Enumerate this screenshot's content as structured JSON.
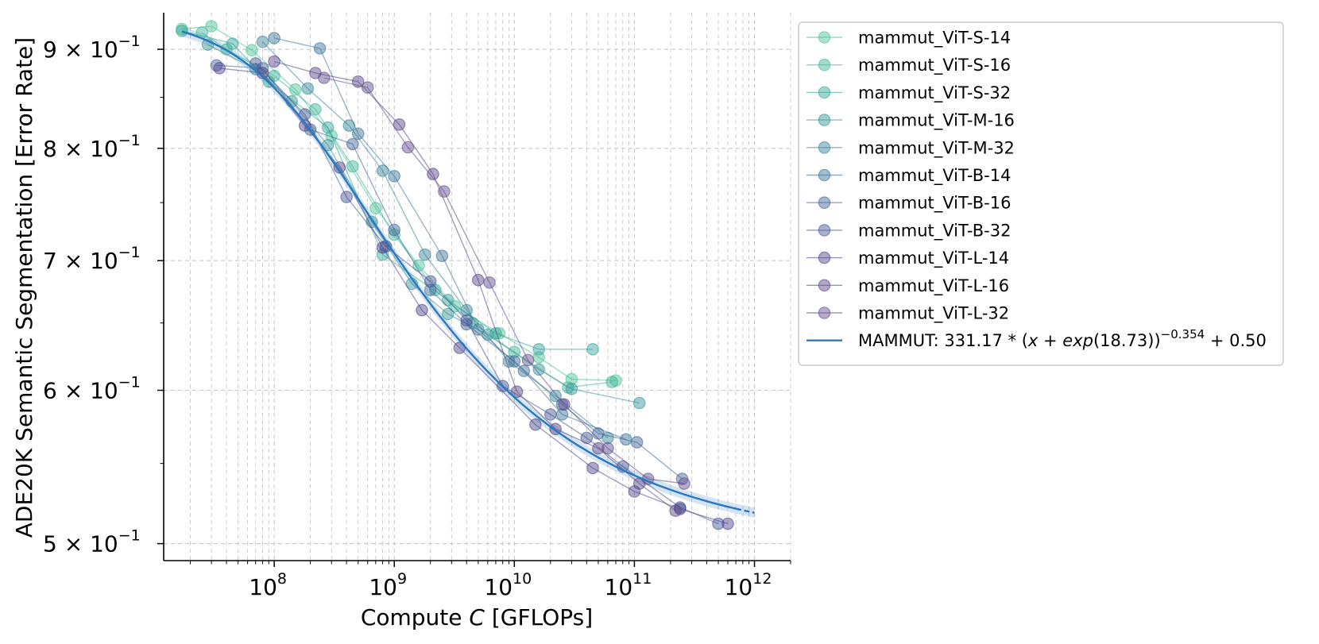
{
  "chart_data": {
    "type": "line",
    "title": "",
    "xlabel_parts": [
      "Compute ",
      "C",
      " [GFLOPs]"
    ],
    "ylabel": "ADE20K Semantic Segmentation [Error Rate]",
    "x_scale": "log",
    "y_scale": "log",
    "xlim": [
      12000000,
      2000000000000
    ],
    "ylim": [
      0.49,
      0.94
    ],
    "grid": true,
    "legend_position": "outside-right",
    "x_ticks": [
      {
        "value": 100000000,
        "base": "10",
        "exp": "8"
      },
      {
        "value": 1000000000,
        "base": "10",
        "exp": "9"
      },
      {
        "value": 10000000000,
        "base": "10",
        "exp": "10"
      },
      {
        "value": 100000000000,
        "base": "10",
        "exp": "11"
      },
      {
        "value": 1000000000000,
        "base": "10",
        "exp": "12"
      }
    ],
    "y_ticks": [
      {
        "value": 0.5,
        "mant": "5 × 10",
        "exp": "−1"
      },
      {
        "value": 0.6,
        "mant": "6 × 10",
        "exp": "−1"
      },
      {
        "value": 0.7,
        "mant": "7 × 10",
        "exp": "−1"
      },
      {
        "value": 0.8,
        "mant": "8 × 10",
        "exp": "−1"
      },
      {
        "value": 0.9,
        "mant": "9 × 10",
        "exp": "−1"
      }
    ],
    "series": [
      {
        "name": "mammut_ViT-S-14",
        "color": "#4fc49a",
        "points": [
          [
            17000000.0,
            0.922
          ],
          [
            30000000.0,
            0.925
          ],
          [
            65000000.0,
            0.899
          ],
          [
            150000000.0,
            0.858
          ],
          [
            300000000.0,
            0.812
          ],
          [
            700000000.0,
            0.745
          ],
          [
            1600000000.0,
            0.696
          ],
          [
            3200000000.0,
            0.663
          ],
          [
            7500000000.0,
            0.642
          ],
          [
            16000000000.0,
            0.624
          ],
          [
            30000000000.0,
            0.608
          ],
          [
            70000000000.0,
            0.607
          ]
        ]
      },
      {
        "name": "mammut_ViT-S-16",
        "color": "#45b59b",
        "points": [
          [
            25000000.0,
            0.918
          ],
          [
            40000000.0,
            0.9
          ],
          [
            100000000.0,
            0.872
          ],
          [
            220000000.0,
            0.838
          ],
          [
            450000000.0,
            0.783
          ],
          [
            1000000000.0,
            0.722
          ],
          [
            2200000000.0,
            0.676
          ],
          [
            4500000000.0,
            0.65
          ],
          [
            10000000000.0,
            0.628
          ],
          [
            28000000000.0,
            0.602
          ],
          [
            65000000000.0,
            0.606
          ]
        ]
      },
      {
        "name": "mammut_ViT-S-32",
        "color": "#3aa79a",
        "points": [
          [
            17000000.0,
            0.92
          ],
          [
            45000000.0,
            0.906
          ],
          [
            90000000.0,
            0.866
          ],
          [
            280000000.0,
            0.82
          ],
          [
            800000000.0,
            0.705
          ],
          [
            2800000000.0,
            0.668
          ],
          [
            7000000000.0,
            0.642
          ],
          [
            16000000000.0,
            0.63
          ],
          [
            45000000000.0,
            0.63
          ]
        ]
      },
      {
        "name": "mammut_ViT-M-16",
        "color": "#3d979a",
        "points": [
          [
            28000000.0,
            0.905
          ],
          [
            70000000.0,
            0.879
          ],
          [
            140000000.0,
            0.846
          ],
          [
            280000000.0,
            0.803
          ],
          [
            650000000.0,
            0.733
          ],
          [
            1400000000.0,
            0.681
          ],
          [
            2800000000.0,
            0.657
          ],
          [
            6000000000.0,
            0.641
          ],
          [
            16000000000.0,
            0.615
          ],
          [
            30000000000.0,
            0.601
          ],
          [
            110000000000.0,
            0.591
          ]
        ]
      },
      {
        "name": "mammut_ViT-M-32",
        "color": "#3d879a",
        "points": [
          [
            80000000.0,
            0.908
          ],
          [
            190000000.0,
            0.859
          ],
          [
            420000000.0,
            0.822
          ],
          [
            800000000.0,
            0.779
          ],
          [
            1800000000.0,
            0.705
          ],
          [
            4000000000.0,
            0.66
          ],
          [
            9000000000.0,
            0.621
          ],
          [
            22000000000.0,
            0.596
          ],
          [
            60000000000.0,
            0.567
          ]
        ]
      },
      {
        "name": "mammut_ViT-B-14",
        "color": "#3f789a",
        "points": [
          [
            100000000.0,
            0.912
          ],
          [
            240000000.0,
            0.901
          ],
          [
            500000000.0,
            0.814
          ],
          [
            1000000000.0,
            0.774
          ],
          [
            2500000000.0,
            0.704
          ],
          [
            5000000000.0,
            0.645
          ],
          [
            12000000000.0,
            0.614
          ],
          [
            25000000000.0,
            0.583
          ],
          [
            85000000000.0,
            0.566
          ]
        ]
      },
      {
        "name": "mammut_ViT-B-16",
        "color": "#44699a",
        "points": [
          [
            33000000.0,
            0.883
          ],
          [
            80000000.0,
            0.88
          ],
          [
            200000000.0,
            0.818
          ],
          [
            450000000.0,
            0.804
          ],
          [
            1000000000.0,
            0.726
          ],
          [
            2000000000.0,
            0.676
          ],
          [
            4000000000.0,
            0.649
          ],
          [
            10000000000.0,
            0.621
          ],
          [
            25000000000.0,
            0.59
          ],
          [
            50000000000.0,
            0.57
          ],
          [
            105000000000.0,
            0.564
          ],
          [
            250000000000.0,
            0.54
          ]
        ]
      },
      {
        "name": "mammut_ViT-B-32",
        "color": "#4a5a96",
        "points": [
          [
            70000000.0,
            0.885
          ],
          [
            180000000.0,
            0.833
          ],
          [
            400000000.0,
            0.755
          ],
          [
            850000000.0,
            0.712
          ],
          [
            2000000000.0,
            0.683
          ],
          [
            4000000000.0,
            0.652
          ],
          [
            8000000000.0,
            0.603
          ],
          [
            20000000000.0,
            0.583
          ],
          [
            40000000000.0,
            0.567
          ],
          [
            80000000000.0,
            0.548
          ],
          [
            240000000000.0,
            0.522
          ],
          [
            500000000000.0,
            0.512
          ]
        ]
      },
      {
        "name": "mammut_ViT-L-14",
        "color": "#4f4a8f",
        "points": [
          [
            35000000.0,
            0.88
          ],
          [
            80000000.0,
            0.875
          ],
          [
            180000000.0,
            0.822
          ],
          [
            350000000.0,
            0.782
          ],
          [
            800000000.0,
            0.711
          ],
          [
            1700000000.0,
            0.66
          ],
          [
            3500000000.0,
            0.631
          ],
          [
            15000000000.0,
            0.576
          ],
          [
            45000000000.0,
            0.547
          ],
          [
            100000000000.0,
            0.532
          ],
          [
            240000000000.0,
            0.521
          ],
          [
            600000000000.0,
            0.512
          ]
        ]
      },
      {
        "name": "mammut_ViT-L-16",
        "color": "#5b4a8c",
        "points": [
          [
            100000000.0,
            0.887
          ],
          [
            220000000.0,
            0.875
          ],
          [
            500000000.0,
            0.866
          ],
          [
            1100000000.0,
            0.823
          ],
          [
            2100000000.0,
            0.776
          ],
          [
            5000000000.0,
            0.684
          ],
          [
            10500000000.0,
            0.599
          ],
          [
            22000000000.0,
            0.573
          ],
          [
            50000000000.0,
            0.56
          ],
          [
            110000000000.0,
            0.537
          ],
          [
            220000000000.0,
            0.52
          ]
        ]
      },
      {
        "name": "mammut_ViT-L-32",
        "color": "#64518f",
        "points": [
          [
            260000000.0,
            0.87
          ],
          [
            600000000.0,
            0.86
          ],
          [
            1300000000.0,
            0.801
          ],
          [
            2600000000.0,
            0.76
          ],
          [
            6200000000.0,
            0.682
          ],
          [
            13000000000.0,
            0.622
          ],
          [
            26000000000.0,
            0.59
          ],
          [
            60000000000.0,
            0.56
          ],
          [
            130000000000.0,
            0.54
          ],
          [
            260000000000.0,
            0.537
          ]
        ]
      }
    ],
    "fit": {
      "name_prefix": "MAMMUT: 331.17 * (",
      "name_x": "x",
      "name_mid1": " + ",
      "name_fn": "exp",
      "name_mid2": "(18.73))",
      "name_sup": "−0.354",
      "name_suffix": " + 0.50",
      "a": 331.17,
      "x0_log": 18.73,
      "alpha": 0.354,
      "e_inf": 0.5,
      "color": "#2a78c0",
      "x_start": 17000000,
      "x_solid_end": 700000000000,
      "x_dash_end": 1000000000000
    }
  }
}
